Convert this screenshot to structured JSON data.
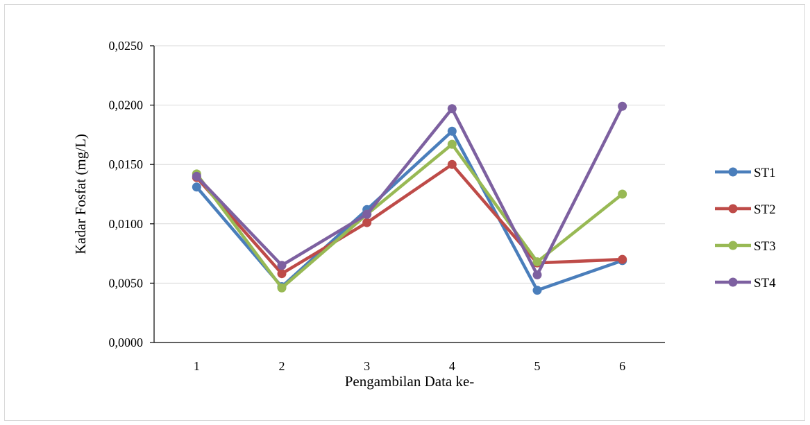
{
  "chart_data": {
    "type": "line",
    "title": "",
    "xlabel": "Pengambilan Data ke-",
    "ylabel": "Kadar Fosfat (mg/L)",
    "categories": [
      "1",
      "2",
      "3",
      "4",
      "5",
      "6"
    ],
    "ylim": [
      0,
      0.025
    ],
    "yticks": [
      0,
      0.005,
      0.01,
      0.015,
      0.02,
      0.025
    ],
    "ytick_labels": [
      "0,0000",
      "0,0050",
      "0,0100",
      "0,0150",
      "0,0200",
      "0,0250"
    ],
    "grid": true,
    "legend_position": "right",
    "series": [
      {
        "name": "ST1",
        "color": "#4a7ebb",
        "values": [
          0.0131,
          0.0047,
          0.0112,
          0.0178,
          0.0044,
          0.0069
        ]
      },
      {
        "name": "ST2",
        "color": "#be4b48",
        "values": [
          0.0139,
          0.0058,
          0.0101,
          0.015,
          0.0067,
          0.007
        ]
      },
      {
        "name": "ST3",
        "color": "#98b954",
        "values": [
          0.0142,
          0.0046,
          0.0108,
          0.0167,
          0.0068,
          0.0125
        ]
      },
      {
        "name": "ST4",
        "color": "#7d60a0",
        "values": [
          0.014,
          0.0065,
          0.0108,
          0.0197,
          0.0057,
          0.0199
        ]
      }
    ]
  }
}
